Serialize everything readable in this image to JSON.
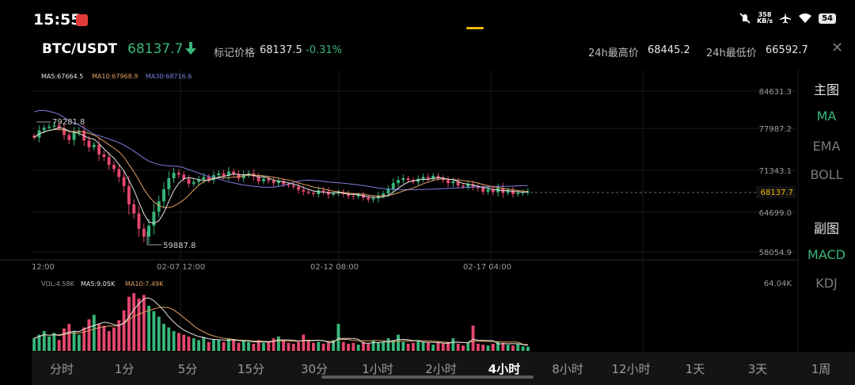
{
  "status_bar": {
    "time": "15:55",
    "net_speed_value": "358",
    "net_speed_unit": "KB/s",
    "battery": "54",
    "icons": [
      "app-notification-icon",
      "do-not-disturb-icon",
      "airplane-mode-icon",
      "wifi-icon",
      "battery-icon"
    ]
  },
  "ticker": {
    "pair": "BTC/USDT",
    "last_price": "68137.7",
    "direction_icon": "arrow-down-icon",
    "mark_price_label": "标记价格",
    "mark_price": "68137.5",
    "change_pct": "-0.31%",
    "high_label": "24h最高价",
    "high_value": "68445.2",
    "low_label": "24h最低价",
    "low_value": "66592.7",
    "close_icon": "close-icon"
  },
  "colors": {
    "up": "#37b679",
    "down": "#e3476b",
    "ma5": "#e6e6e6",
    "ma10": "#e0a060",
    "ma30": "#7b7fe0",
    "accent": "#f0b90b"
  },
  "main_chart": {
    "ma_legend": {
      "ma5": "MA5:67664.5",
      "ma10": "MA10:67968.9",
      "ma30": "MA30:68716.6"
    },
    "price_ticks": [
      "84631.3",
      "77987.2",
      "71343.1",
      "64699.0",
      "58054.9"
    ],
    "current_price_tag": "68137.7",
    "high_marker": "79281.8",
    "low_marker": "59887.8",
    "time_ticks": [
      "12:00",
      "02-07 12:00",
      "02-12 08:00",
      "02-17 04:00"
    ]
  },
  "volume_chart": {
    "legend": {
      "vol": "VOL:4.58K",
      "ma5": "MA5:9.05K",
      "ma10": "MA10:7.49K"
    },
    "max_tick": "64.04K"
  },
  "side_menu": {
    "main_heading": "主图",
    "main_items": [
      "MA",
      "EMA",
      "BOLL"
    ],
    "main_active": "MA",
    "sub_heading": "副图",
    "sub_items": [
      "MACD",
      "KDJ"
    ],
    "sub_active": "MACD"
  },
  "timeframes": {
    "items": [
      "分时",
      "1分",
      "5分",
      "15分",
      "30分",
      "1小时",
      "2小时",
      "4小时",
      "8小时",
      "12小时",
      "1天",
      "3天",
      "1周"
    ],
    "active": "4小时"
  },
  "chart_data": {
    "type": "candlestick",
    "pair": "BTC/USDT",
    "interval": "4小时",
    "y_range": [
      58054.9,
      84631.3
    ],
    "x_tick_labels": [
      "12:00",
      "02-07 12:00",
      "02-12 08:00",
      "02-17 04:00"
    ],
    "annotations": {
      "high": 79281.8,
      "low": 59887.8,
      "last": 68137.7
    },
    "ma_values": {
      "MA5": 67664.5,
      "MA10": 67968.9,
      "MA30": 68716.6
    },
    "volume_max": "64.04K",
    "volume_latest": "4.58K",
    "close_path": [
      77000,
      78200,
      78600,
      78800,
      79000,
      78500,
      77400,
      76600,
      77800,
      78100,
      76500,
      75400,
      75800,
      74200,
      73800,
      72500,
      71800,
      70500,
      69000,
      66000,
      64500,
      62000,
      60700,
      62500,
      64800,
      66500,
      68500,
      70300,
      71200,
      70900,
      70200,
      69400,
      69700,
      70100,
      70500,
      70000,
      70800,
      71100,
      70700,
      71400,
      71000,
      70300,
      70900,
      71100,
      70600,
      69800,
      70200,
      69900,
      69500,
      69800,
      69300,
      69100,
      68900,
      68400,
      68100,
      67900,
      67700,
      68300,
      68100,
      67600,
      67800,
      68000,
      67700,
      67400,
      67300,
      67600,
      67100,
      66800,
      67000,
      67400,
      67800,
      68500,
      69500,
      70000,
      70300,
      70000,
      69700,
      70200,
      70500,
      70200,
      70700,
      70300,
      70000,
      69500,
      69800,
      69100,
      68900,
      69300,
      68900,
      68700,
      68100,
      68500,
      68000,
      68700,
      67900,
      68300,
      67700,
      67900,
      68000,
      68137.7
    ],
    "volume_k": [
      14,
      18,
      22,
      16,
      20,
      12,
      25,
      30,
      22,
      18,
      26,
      35,
      40,
      30,
      28,
      22,
      26,
      34,
      45,
      60,
      64,
      58,
      62,
      50,
      44,
      38,
      30,
      26,
      22,
      20,
      18,
      16,
      14,
      12,
      15,
      10,
      13,
      12,
      10,
      14,
      12,
      9,
      11,
      10,
      8,
      12,
      9,
      10,
      14,
      16,
      12,
      9,
      8,
      10,
      18,
      12,
      9,
      10,
      8,
      9,
      12,
      30,
      10,
      8,
      9,
      7,
      10,
      8,
      12,
      9,
      10,
      14,
      12,
      18,
      10,
      8,
      9,
      12,
      10,
      9,
      7,
      9,
      8,
      10,
      14,
      8,
      6,
      9,
      28,
      8,
      7,
      6,
      8,
      10,
      9,
      7,
      6,
      8,
      5,
      4.58
    ]
  }
}
